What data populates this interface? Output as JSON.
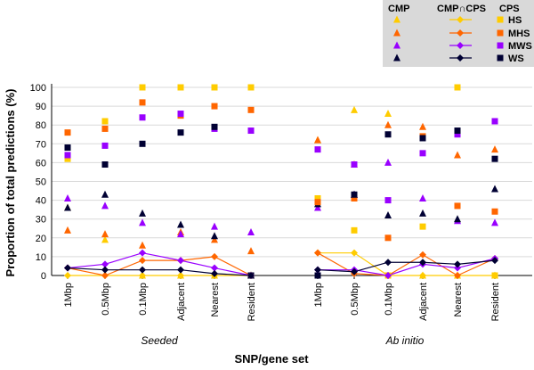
{
  "chart_data": {
    "type": "scatter",
    "ylabel": "Proportion of total predictions (%)",
    "xlabel": "SNP/gene set",
    "ylim": [
      0,
      100
    ],
    "yticks": [
      "0",
      "10",
      "20",
      "30",
      "40",
      "50",
      "60",
      "70",
      "80",
      "90",
      "100"
    ],
    "groups": [
      {
        "label": "Seeded",
        "categories": [
          "1Mbp",
          "0.5Mbp",
          "0.1Mbp",
          "Adjacent",
          "Nearest",
          "Resident"
        ]
      },
      {
        "label": "Ab initio",
        "categories": [
          "1Mbp",
          "0.5Mbp",
          "0.1Mbp",
          "Adjacent",
          "Nearest",
          "Resident"
        ]
      }
    ],
    "legend": {
      "headers": [
        "CMP",
        "CMP∩CPS",
        "CPS"
      ],
      "row_labels": [
        "HS",
        "MHS",
        "MWS",
        "WS"
      ]
    },
    "series": [
      {
        "method": "CMP",
        "set": "HS",
        "marker": "triangle",
        "color": "#FFCC00",
        "values": [
          [
            36,
            19,
            0,
            0,
            0,
            0
          ],
          [
            72,
            88,
            86,
            0,
            0,
            0
          ]
        ]
      },
      {
        "method": "CMP",
        "set": "MHS",
        "marker": "triangle",
        "color": "#FF6600",
        "values": [
          [
            24,
            22,
            16,
            23,
            19,
            13
          ],
          [
            72,
            59,
            80,
            79,
            64,
            67
          ]
        ]
      },
      {
        "method": "CMP",
        "set": "MWS",
        "marker": "triangle",
        "color": "#9900FF",
        "values": [
          [
            41,
            37,
            28,
            22,
            26,
            23
          ],
          [
            36,
            43,
            60,
            41,
            29,
            28
          ]
        ]
      },
      {
        "method": "CMP",
        "set": "WS",
        "marker": "triangle",
        "color": "#000033",
        "values": [
          [
            36,
            43,
            33,
            27,
            21,
            0
          ],
          [
            38,
            43,
            32,
            33,
            30,
            46
          ]
        ]
      },
      {
        "method": "CPS",
        "set": "HS",
        "marker": "square",
        "color": "#FFCC00",
        "values": [
          [
            62,
            82,
            100,
            100,
            100,
            100
          ],
          [
            41,
            24,
            0,
            26,
            100,
            0
          ]
        ]
      },
      {
        "method": "CPS",
        "set": "MHS",
        "marker": "square",
        "color": "#FF6600",
        "values": [
          [
            76,
            78,
            92,
            85,
            90,
            88
          ],
          [
            39,
            41,
            20,
            74,
            37,
            34
          ]
        ]
      },
      {
        "method": "CPS",
        "set": "MWS",
        "marker": "square",
        "color": "#9900FF",
        "values": [
          [
            64,
            69,
            84,
            86,
            78,
            77
          ],
          [
            67,
            59,
            40,
            65,
            75,
            82
          ]
        ]
      },
      {
        "method": "CPS",
        "set": "WS",
        "marker": "square",
        "color": "#000033",
        "values": [
          [
            68,
            59,
            70,
            76,
            79,
            0
          ],
          [
            0,
            43,
            75,
            73,
            77,
            62
          ]
        ]
      },
      {
        "method": "CMP∩CPS",
        "set": "HS",
        "marker": "diamond",
        "color": "#FFCC00",
        "values": [
          [
            0,
            0,
            0,
            0,
            0,
            0
          ],
          [
            12,
            12,
            0,
            0,
            0,
            0
          ]
        ]
      },
      {
        "method": "CMP∩CPS",
        "set": "MHS",
        "marker": "diamond",
        "color": "#FF6600",
        "values": [
          [
            4,
            0,
            8,
            8,
            10,
            0
          ],
          [
            12,
            1,
            0,
            11,
            0,
            9
          ]
        ]
      },
      {
        "method": "CMP∩CPS",
        "set": "MWS",
        "marker": "diamond",
        "color": "#9900FF",
        "values": [
          [
            4,
            6,
            12,
            8,
            4,
            0
          ],
          [
            3,
            3,
            0,
            6,
            4,
            9
          ]
        ]
      },
      {
        "method": "CMP∩CPS",
        "set": "WS",
        "marker": "diamond",
        "color": "#000033",
        "values": [
          [
            4,
            3,
            3,
            3,
            1,
            0
          ],
          [
            3,
            2,
            7,
            7,
            6,
            8
          ]
        ]
      }
    ]
  }
}
